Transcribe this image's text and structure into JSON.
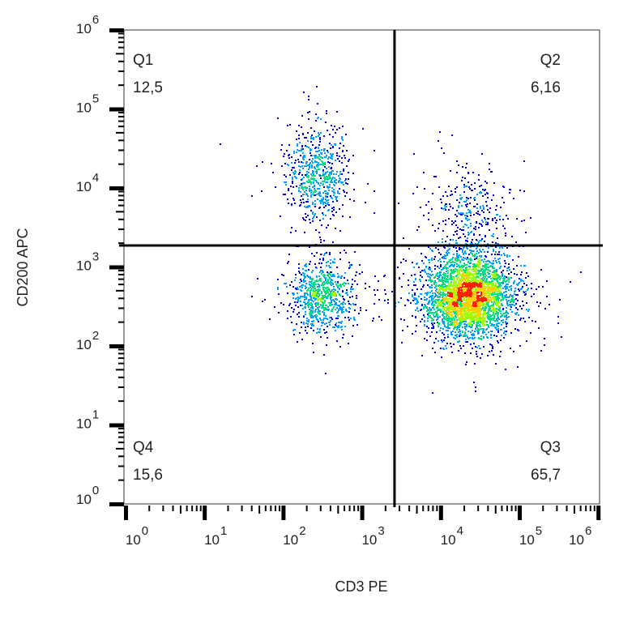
{
  "chart_data": {
    "type": "scatter",
    "subtype": "density-dot-plot",
    "xlabel": "CD3 PE",
    "ylabel": "CD200 APC",
    "x_scale": "log",
    "y_scale": "log",
    "xlim": [
      1,
      1000000
    ],
    "ylim": [
      1,
      1000000
    ],
    "x_ticks": [
      {
        "base": "10",
        "exp": "0"
      },
      {
        "base": "10",
        "exp": "1"
      },
      {
        "base": "10",
        "exp": "2"
      },
      {
        "base": "10",
        "exp": "3"
      },
      {
        "base": "10",
        "exp": "4"
      },
      {
        "base": "10",
        "exp": "5"
      },
      {
        "base": "10",
        "exp": "6"
      }
    ],
    "y_ticks": [
      {
        "base": "10",
        "exp": "0"
      },
      {
        "base": "10",
        "exp": "1"
      },
      {
        "base": "10",
        "exp": "2"
      },
      {
        "base": "10",
        "exp": "3"
      },
      {
        "base": "10",
        "exp": "4"
      },
      {
        "base": "10",
        "exp": "5"
      },
      {
        "base": "10",
        "exp": "6"
      }
    ],
    "gate": {
      "x": 2600,
      "y": 1870
    },
    "quadrants": [
      {
        "label": "Q1",
        "value": "12,5"
      },
      {
        "label": "Q2",
        "value": "6,16"
      },
      {
        "label": "Q3",
        "value": "65,7"
      },
      {
        "label": "Q4",
        "value": "15,6"
      }
    ],
    "populations": [
      {
        "quadrant": "Q1",
        "x_center": 260,
        "y_center": 15000,
        "x_spread_decades": 0.2,
        "y_spread_decades": 0.3,
        "fraction": 0.125
      },
      {
        "quadrant": "Q2",
        "x_center": 25000,
        "y_center": 5000,
        "x_spread_decades": 0.25,
        "y_spread_decades": 0.3,
        "fraction": 0.0616
      },
      {
        "quadrant": "Q3",
        "x_center": 22000,
        "y_center": 440,
        "x_spread_decades": 0.28,
        "y_spread_decades": 0.25,
        "fraction": 0.657
      },
      {
        "quadrant": "Q4",
        "x_center": 300,
        "y_center": 440,
        "x_spread_decades": 0.2,
        "y_spread_decades": 0.22,
        "fraction": 0.156
      }
    ],
    "density_colors": [
      "#0000e0",
      "#00a0ff",
      "#00e080",
      "#a0ff00",
      "#ffd000",
      "#ff2000"
    ],
    "grid": false,
    "legend": "none"
  }
}
